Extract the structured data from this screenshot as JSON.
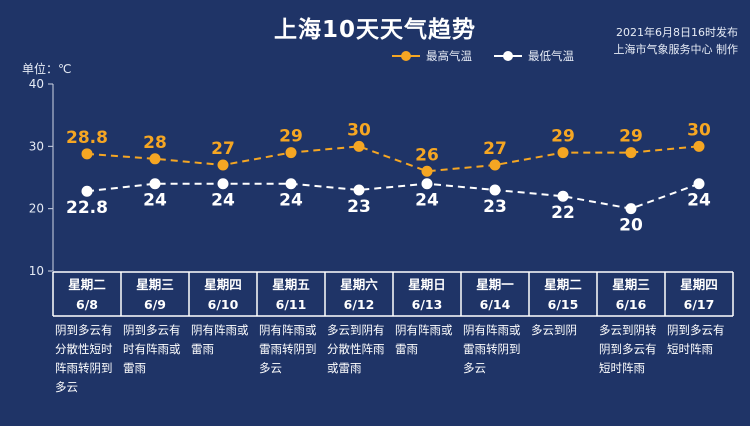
{
  "chart_data": {
    "type": "line",
    "title": "上海10天天气趋势",
    "publish_time": "2021年6月8日16时发布",
    "publisher": "上海市气象服务中心 制作",
    "ylabel": "单位：℃",
    "ylim": [
      10,
      40
    ],
    "yticks": [
      10,
      20,
      30,
      40
    ],
    "grid": false,
    "legend_position": "top-center",
    "categories": [
      {
        "weekday": "星期二",
        "date": "6/8"
      },
      {
        "weekday": "星期三",
        "date": "6/9"
      },
      {
        "weekday": "星期四",
        "date": "6/10"
      },
      {
        "weekday": "星期五",
        "date": "6/11"
      },
      {
        "weekday": "星期六",
        "date": "6/12"
      },
      {
        "weekday": "星期日",
        "date": "6/13"
      },
      {
        "weekday": "星期一",
        "date": "6/14"
      },
      {
        "weekday": "星期二",
        "date": "6/15"
      },
      {
        "weekday": "星期三",
        "date": "6/16"
      },
      {
        "weekday": "星期四",
        "date": "6/17"
      }
    ],
    "series": [
      {
        "name": "最高气温",
        "color": "#f5a623",
        "values": [
          28.8,
          28,
          27,
          29,
          30,
          26,
          27,
          29,
          29,
          30
        ],
        "labels": [
          "28.8",
          "28",
          "27",
          "29",
          "30",
          "26",
          "27",
          "29",
          "29",
          "30"
        ]
      },
      {
        "name": "最低气温",
        "color": "#ffffff",
        "values": [
          22.8,
          24,
          24,
          24,
          23,
          24,
          23,
          22,
          20,
          24
        ],
        "labels": [
          "22.8",
          "24",
          "24",
          "24",
          "23",
          "24",
          "23",
          "22",
          "20",
          "24"
        ]
      }
    ],
    "descriptions": [
      "阴到多云有分散性短时阵雨转阴到多云",
      "阴到多云有时有阵雨或雷雨",
      "阴有阵雨或雷雨",
      "阴有阵雨或雷雨转阴到多云",
      "多云到阴有分散性阵雨或雷雨",
      "阴有阵雨或雷雨",
      "阴有阵雨或雷雨转阴到多云",
      "多云到阴",
      "多云到阴转阴到多云有短时阵雨",
      "阴到多云有短时阵雨"
    ]
  }
}
